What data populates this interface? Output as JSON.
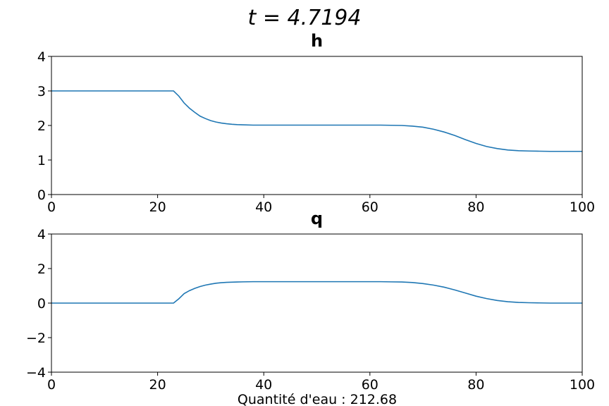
{
  "suptitle": "t = 4.7194",
  "footer": "Quantité d'eau : 212.68",
  "colors": {
    "line": "#1f77b4",
    "axis": "#000000"
  },
  "chart_data": [
    {
      "type": "line",
      "title": "h",
      "xlabel": "",
      "ylabel": "",
      "xlim": [
        0,
        100
      ],
      "ylim": [
        0,
        4
      ],
      "xticks": [
        0,
        20,
        40,
        60,
        80,
        100
      ],
      "yticks": [
        0,
        1,
        2,
        3,
        4
      ],
      "ytick_labels": [
        "0",
        "1",
        "2",
        "3",
        "4"
      ],
      "grid": false,
      "x": [
        0,
        5,
        10,
        15,
        20,
        23,
        24,
        25,
        26,
        27,
        28,
        29,
        30,
        31,
        32,
        33,
        34,
        35,
        36,
        38,
        40,
        45,
        50,
        55,
        60,
        62,
        64,
        66,
        68,
        70,
        72,
        74,
        76,
        78,
        80,
        82,
        84,
        86,
        88,
        90,
        92,
        94,
        96,
        98,
        100
      ],
      "values": [
        3.0,
        3.0,
        3.0,
        3.0,
        3.0,
        3.0,
        2.85,
        2.65,
        2.5,
        2.38,
        2.27,
        2.2,
        2.14,
        2.1,
        2.07,
        2.05,
        2.035,
        2.025,
        2.02,
        2.01,
        2.01,
        2.01,
        2.01,
        2.01,
        2.01,
        2.01,
        2.005,
        2.0,
        1.98,
        1.95,
        1.89,
        1.81,
        1.71,
        1.59,
        1.48,
        1.39,
        1.33,
        1.29,
        1.27,
        1.26,
        1.255,
        1.25,
        1.25,
        1.25,
        1.25
      ]
    },
    {
      "type": "line",
      "title": "q",
      "xlabel": "",
      "ylabel": "",
      "xlim": [
        0,
        100
      ],
      "ylim": [
        -4,
        4
      ],
      "xticks": [
        0,
        20,
        40,
        60,
        80,
        100
      ],
      "yticks": [
        -4,
        -2,
        0,
        2,
        4
      ],
      "ytick_labels": [
        "−4",
        "−2",
        "0",
        "2",
        "4"
      ],
      "grid": false,
      "x": [
        0,
        5,
        10,
        15,
        20,
        23,
        24,
        25,
        26,
        27,
        28,
        29,
        30,
        31,
        32,
        33,
        34,
        35,
        36,
        38,
        40,
        45,
        50,
        55,
        60,
        62,
        64,
        66,
        68,
        70,
        72,
        74,
        76,
        78,
        80,
        82,
        84,
        86,
        88,
        90,
        92,
        94,
        96,
        98,
        100
      ],
      "values": [
        0.0,
        0.0,
        0.0,
        0.0,
        0.0,
        0.0,
        0.25,
        0.55,
        0.72,
        0.85,
        0.96,
        1.04,
        1.1,
        1.15,
        1.18,
        1.2,
        1.21,
        1.22,
        1.23,
        1.24,
        1.24,
        1.24,
        1.24,
        1.24,
        1.24,
        1.24,
        1.23,
        1.22,
        1.19,
        1.13,
        1.04,
        0.92,
        0.76,
        0.58,
        0.4,
        0.26,
        0.15,
        0.08,
        0.04,
        0.02,
        0.01,
        0.0,
        0.0,
        0.0,
        0.0
      ]
    }
  ]
}
